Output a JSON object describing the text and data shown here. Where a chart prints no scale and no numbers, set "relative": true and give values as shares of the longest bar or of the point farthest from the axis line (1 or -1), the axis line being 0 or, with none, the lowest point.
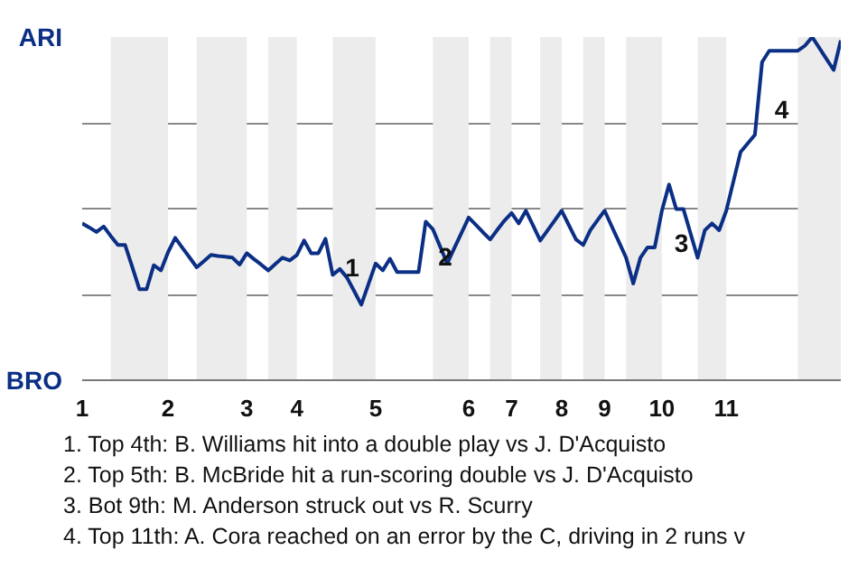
{
  "chart_data": {
    "type": "line",
    "relative": true,
    "categories": [
      "1",
      null,
      null,
      null,
      null,
      null,
      null,
      null,
      null,
      null,
      null,
      null,
      "2",
      null,
      null,
      null,
      null,
      null,
      null,
      null,
      null,
      null,
      null,
      "3",
      null,
      null,
      null,
      null,
      null,
      null,
      "4",
      null,
      null,
      null,
      null,
      null,
      null,
      null,
      null,
      null,
      null,
      "5",
      null,
      null,
      null,
      null,
      null,
      null,
      null,
      null,
      null,
      null,
      null,
      null,
      "6",
      null,
      null,
      null,
      null,
      null,
      "7",
      null,
      null,
      null,
      null,
      null,
      null,
      "8",
      null,
      null,
      null,
      null,
      null,
      "9",
      null,
      null,
      null,
      null,
      null,
      null,
      null,
      "10",
      null,
      null,
      null,
      null,
      null,
      null,
      null,
      null,
      "11",
      null,
      null,
      null,
      null,
      null,
      null,
      null,
      null,
      null,
      null,
      null,
      null,
      null,
      null,
      null,
      null
    ],
    "series": [
      {
        "color": "#0b2f85",
        "values": [
          0.457,
          0.445,
          0.432,
          0.448,
          0.42,
          0.394,
          0.394,
          0.33,
          0.265,
          0.265,
          0.335,
          0.32,
          0.373,
          0.415,
          0.386,
          0.358,
          0.329,
          0.347,
          0.365,
          0.362,
          0.36,
          0.357,
          0.337,
          0.37,
          0.353,
          0.337,
          0.32,
          0.339,
          0.357,
          0.349,
          0.365,
          0.407,
          0.37,
          0.37,
          0.412,
          0.307,
          0.324,
          0.299,
          0.26,
          0.22,
          0.28,
          0.34,
          0.32,
          0.354,
          0.315,
          0.315,
          0.315,
          0.315,
          0.462,
          0.44,
          0.39,
          0.34,
          0.385,
          0.429,
          0.474,
          0.453,
          0.431,
          0.41,
          0.438,
          0.465,
          0.487,
          0.457,
          0.494,
          0.451,
          0.407,
          0.436,
          0.465,
          0.494,
          0.452,
          0.41,
          0.394,
          0.437,
          0.466,
          0.494,
          0.448,
          0.403,
          0.357,
          0.282,
          0.357,
          0.387,
          0.387,
          0.494,
          0.57,
          0.499,
          0.499,
          0.428,
          0.357,
          0.437,
          0.457,
          0.437,
          0.494,
          0.58,
          0.665,
          0.69,
          0.715,
          0.927,
          0.96,
          0.96,
          0.96,
          0.96,
          0.96,
          0.975,
          1,
          0.968,
          0.936,
          0.904,
          0.99
        ]
      }
    ],
    "grid": "y",
    "annotations": [
      "ARI",
      "BRO",
      "1",
      "2",
      "3",
      "4",
      "1. Top 4th: B. Williams hit into a double play vs J. D'Acquisto",
      "2. Top 5th: B. McBride hit a run-scoring double vs J. D'Acquisto",
      "3. Bot 9th: M. Anderson struck out vs R. Scurry",
      "4. Top 11th: A. Cora reached on an error by the C, driving in 2 runs v"
    ]
  }
}
